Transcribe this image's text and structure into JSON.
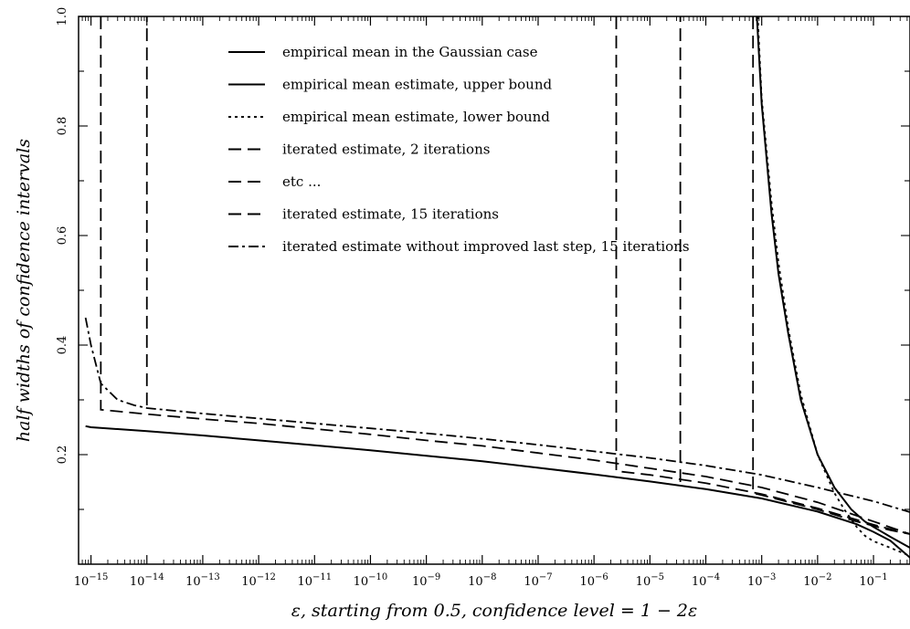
{
  "chart_data": {
    "type": "line",
    "xlabel": "ε, starting from 0.5, confidence level = 1 − 2ε",
    "ylabel": "half widths of confidence intervals",
    "xscale": "log",
    "xlim": [
      6e-16,
      0.45
    ],
    "ylim": [
      0.0,
      1.0
    ],
    "x_ticks": [
      {
        "base": "10",
        "exp": "−15",
        "value": 1e-15
      },
      {
        "base": "10",
        "exp": "−14",
        "value": 1e-14
      },
      {
        "base": "10",
        "exp": "−13",
        "value": 1e-13
      },
      {
        "base": "10",
        "exp": "−12",
        "value": 1e-12
      },
      {
        "base": "10",
        "exp": "−11",
        "value": 1e-11
      },
      {
        "base": "10",
        "exp": "−10",
        "value": 1e-10
      },
      {
        "base": "10",
        "exp": "−9",
        "value": 1e-09
      },
      {
        "base": "10",
        "exp": "−8",
        "value": 1e-08
      },
      {
        "base": "10",
        "exp": "−7",
        "value": 1e-07
      },
      {
        "base": "10",
        "exp": "−6",
        "value": 1e-06
      },
      {
        "base": "10",
        "exp": "−5",
        "value": 1e-05
      },
      {
        "base": "10",
        "exp": "−4",
        "value": 0.0001
      },
      {
        "base": "10",
        "exp": "−3",
        "value": 0.001
      },
      {
        "base": "10",
        "exp": "−2",
        "value": 0.01
      },
      {
        "base": "10",
        "exp": "−1",
        "value": 0.1
      }
    ],
    "y_ticks": [
      {
        "label": "0.2",
        "value": 0.2
      },
      {
        "label": "0.4",
        "value": 0.4
      },
      {
        "label": "0.6",
        "value": 0.6
      },
      {
        "label": "0.8",
        "value": 0.8
      },
      {
        "label": "1.0",
        "value": 1.0
      }
    ],
    "legend_position": "top-center",
    "series": [
      {
        "name": "empirical mean in the Gaussian case",
        "style": "solid",
        "x": [
          8e-16,
          1e-15,
          1e-14,
          1e-13,
          1e-12,
          1e-11,
          1e-10,
          1e-09,
          1e-08,
          1e-07,
          1e-06,
          1e-05,
          0.0001,
          0.001,
          0.01,
          0.05,
          0.1,
          0.2,
          0.45
        ],
        "y": [
          0.252,
          0.25,
          0.243,
          0.235,
          0.226,
          0.217,
          0.208,
          0.198,
          0.188,
          0.176,
          0.164,
          0.151,
          0.137,
          0.12,
          0.096,
          0.073,
          0.059,
          0.043,
          0.012
        ]
      },
      {
        "name": "empirical mean estimate, upper bound",
        "style": "solid",
        "x": [
          0.00082,
          0.001,
          0.0015,
          0.002,
          0.003,
          0.005,
          0.01,
          0.02,
          0.04,
          0.07,
          0.1,
          0.2,
          0.45
        ],
        "y": [
          1.0,
          0.84,
          0.64,
          0.53,
          0.42,
          0.3,
          0.2,
          0.14,
          0.1,
          0.078,
          0.068,
          0.05,
          0.03
        ]
      },
      {
        "name": "empirical mean estimate, lower bound",
        "style": "dotted",
        "x": [
          0.00085,
          0.001,
          0.0015,
          0.002,
          0.003,
          0.005,
          0.01,
          0.02,
          0.03,
          0.05,
          0.07,
          0.1,
          0.2,
          0.45
        ],
        "y": [
          1.0,
          0.85,
          0.66,
          0.55,
          0.43,
          0.31,
          0.2,
          0.13,
          0.1,
          0.068,
          0.052,
          0.042,
          0.03,
          0.015
        ]
      },
      {
        "name": "iterated estimate, 2 iterations",
        "style": "dashed",
        "x": [
          0.0007,
          0.0007,
          0.001,
          0.01,
          0.05,
          0.1,
          0.2,
          0.45
        ],
        "y": [
          1.0,
          0.13,
          0.126,
          0.1,
          0.078,
          0.07,
          0.062,
          0.055
        ]
      },
      {
        "name": "etc ...",
        "style": "dashed",
        "x": [
          2.5e-06,
          2.5e-06,
          1e-05,
          0.0001,
          0.001,
          0.01,
          0.1,
          0.45
        ],
        "y": [
          1.0,
          0.17,
          0.163,
          0.148,
          0.128,
          0.102,
          0.072,
          0.055
        ]
      },
      {
        "name": "iterated estimate, 15 iterations",
        "style": "dashed",
        "x": [
          1.5e-15,
          1.5e-15,
          1e-14,
          1e-13,
          1e-12,
          1e-11,
          1e-10,
          1e-09,
          1e-08,
          1e-07,
          1e-06,
          1e-05,
          0.0001,
          0.001,
          0.01,
          0.1,
          0.45
        ],
        "y": [
          1.0,
          0.282,
          0.274,
          0.265,
          0.257,
          0.247,
          0.237,
          0.226,
          0.216,
          0.203,
          0.19,
          0.175,
          0.16,
          0.14,
          0.113,
          0.078,
          0.055
        ]
      },
      {
        "name": "iterated estimate without improved last step, 15 iterations",
        "style": "dashdot",
        "x": [
          8e-16,
          1e-15,
          1.5e-15,
          3e-15,
          6e-15,
          1e-14,
          1e-13,
          1e-12,
          1e-11,
          1e-10,
          1e-09,
          1e-08,
          1e-07,
          1e-06,
          1e-05,
          0.0001,
          0.001,
          0.01,
          0.1,
          0.45
        ],
        "y": [
          0.45,
          0.4,
          0.33,
          0.3,
          0.29,
          0.285,
          0.275,
          0.266,
          0.257,
          0.248,
          0.239,
          0.229,
          0.218,
          0.206,
          0.194,
          0.18,
          0.163,
          0.14,
          0.115,
          0.095
        ]
      }
    ],
    "extra_vertical_lines": [
      {
        "x": 1e-14,
        "y_from": 0.29,
        "y_to": 1.0,
        "style": "dashed"
      },
      {
        "x": 3.5e-05,
        "y_from": 0.15,
        "y_to": 1.0,
        "style": "dashed"
      }
    ]
  }
}
